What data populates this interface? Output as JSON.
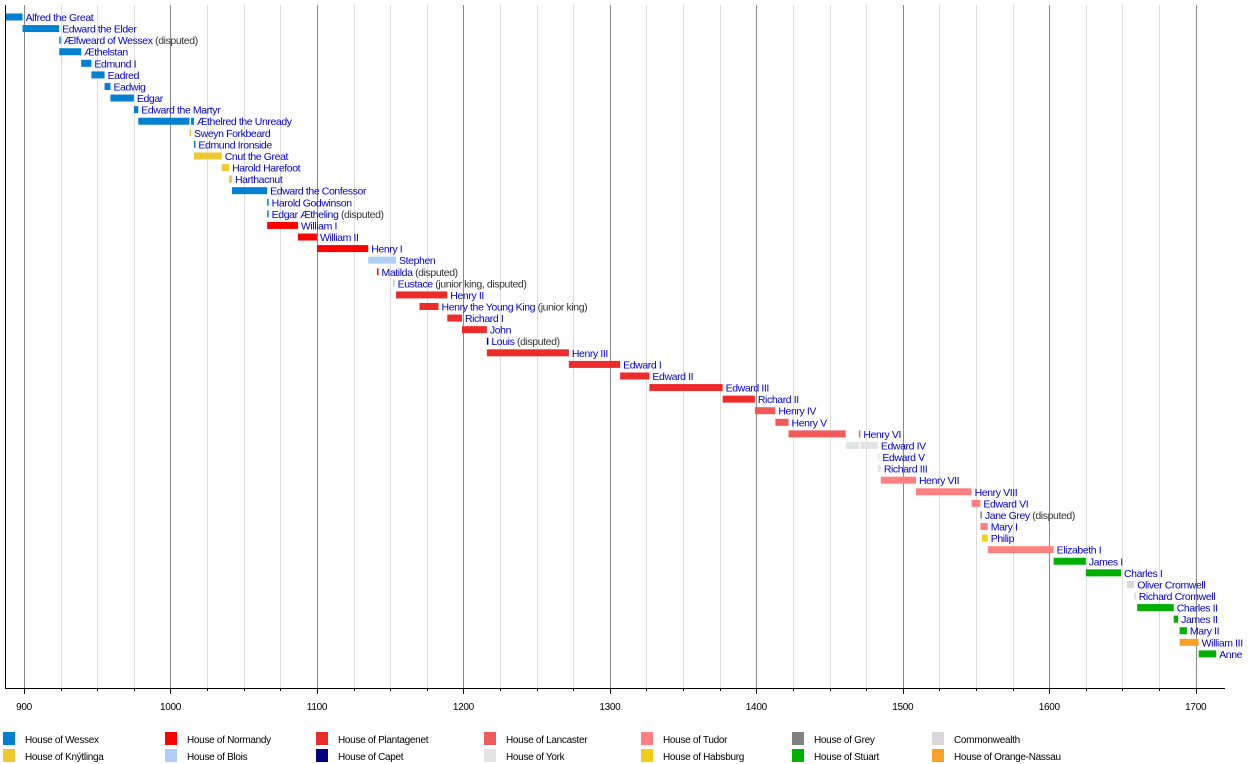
{
  "chart_data": {
    "type": "timeline",
    "title": "",
    "xlabel": "",
    "ylabel": "",
    "xlim": [
      887,
      1720
    ],
    "x_ticks": [
      900,
      1000,
      1100,
      1200,
      1300,
      1400,
      1500,
      1600,
      1700
    ],
    "minor_grid_step": 25,
    "grid": true,
    "legend_position": "bottom",
    "houses": [
      {
        "name": "House of Wessex",
        "color": "#0080d0"
      },
      {
        "name": "House of Knýtlinga",
        "color": "#f0c830"
      },
      {
        "name": "House of Normandy",
        "color": "#ff0000"
      },
      {
        "name": "House of Blois",
        "color": "#b0cdf8"
      },
      {
        "name": "House of Plantagenet",
        "color": "#ec2b2b"
      },
      {
        "name": "House of Capet",
        "color": "#000080"
      },
      {
        "name": "House of Lancaster",
        "color": "#f05a5a"
      },
      {
        "name": "House of York",
        "color": "#e4e4e4"
      },
      {
        "name": "House of Tudor",
        "color": "#ff8080"
      },
      {
        "name": "House of Habsburg",
        "color": "#f5cc14"
      },
      {
        "name": "House of Grey",
        "color": "#808080"
      },
      {
        "name": "House of Stuart",
        "color": "#00b000"
      },
      {
        "name": "Commonwealth",
        "color": "#d8d8d8"
      },
      {
        "name": "House of Orange-Nassau",
        "color": "#f8a028"
      }
    ],
    "legend_order": [
      "House of Wessex",
      "House of Normandy",
      "House of Plantagenet",
      "House of Lancaster",
      "House of Tudor",
      "House of Grey",
      "Commonwealth",
      "House of Knýtlinga",
      "House of Blois",
      "House of Capet",
      "House of York",
      "House of Habsburg",
      "House of Stuart",
      "House of Orange-Nassau"
    ],
    "monarchs": [
      {
        "name": "Alfred the Great",
        "house": "House of Wessex",
        "reigns": [
          [
            871,
            899
          ]
        ],
        "note": ""
      },
      {
        "name": "Edward the Elder",
        "house": "House of Wessex",
        "reigns": [
          [
            899,
            924
          ]
        ],
        "note": ""
      },
      {
        "name": "Ælfweard of Wessex",
        "house": "House of Wessex",
        "reigns": [
          [
            924,
            924
          ]
        ],
        "note": "(disputed)"
      },
      {
        "name": "Æthelstan",
        "house": "House of Wessex",
        "reigns": [
          [
            924,
            939
          ]
        ],
        "note": ""
      },
      {
        "name": "Edmund I",
        "house": "House of Wessex",
        "reigns": [
          [
            939,
            946
          ]
        ],
        "note": ""
      },
      {
        "name": "Eadred",
        "house": "House of Wessex",
        "reigns": [
          [
            946,
            955
          ]
        ],
        "note": ""
      },
      {
        "name": "Eadwig",
        "house": "House of Wessex",
        "reigns": [
          [
            955,
            959
          ]
        ],
        "note": ""
      },
      {
        "name": "Edgar",
        "house": "House of Wessex",
        "reigns": [
          [
            959,
            975
          ]
        ],
        "note": ""
      },
      {
        "name": "Edward the Martyr",
        "house": "House of Wessex",
        "reigns": [
          [
            975,
            978
          ]
        ],
        "note": ""
      },
      {
        "name": "Æthelred the Unready",
        "house": "House of Wessex",
        "reigns": [
          [
            978,
            1013
          ],
          [
            1014,
            1016
          ]
        ],
        "note": ""
      },
      {
        "name": "Sweyn Forkbeard",
        "house": "House of Knýtlinga",
        "reigns": [
          [
            1013,
            1014
          ]
        ],
        "note": ""
      },
      {
        "name": "Edmund Ironside",
        "house": "House of Wessex",
        "reigns": [
          [
            1016,
            1016
          ]
        ],
        "note": ""
      },
      {
        "name": "Cnut the Great",
        "house": "House of Knýtlinga",
        "reigns": [
          [
            1016,
            1035
          ]
        ],
        "note": ""
      },
      {
        "name": "Harold Harefoot",
        "house": "House of Knýtlinga",
        "reigns": [
          [
            1035,
            1040
          ]
        ],
        "note": ""
      },
      {
        "name": "Harthacnut",
        "house": "House of Knýtlinga",
        "reigns": [
          [
            1040,
            1042
          ]
        ],
        "note": ""
      },
      {
        "name": "Edward the Confessor",
        "house": "House of Wessex",
        "reigns": [
          [
            1042,
            1066
          ]
        ],
        "note": ""
      },
      {
        "name": "Harold Godwinson",
        "house": "House of Wessex",
        "reigns": [
          [
            1066,
            1066
          ]
        ],
        "note": ""
      },
      {
        "name": "Edgar Ætheling",
        "house": "House of Wessex",
        "reigns": [
          [
            1066,
            1066
          ]
        ],
        "note": "(disputed)"
      },
      {
        "name": "William I",
        "house": "House of Normandy",
        "reigns": [
          [
            1066,
            1087
          ]
        ],
        "note": ""
      },
      {
        "name": "William II",
        "house": "House of Normandy",
        "reigns": [
          [
            1087,
            1100
          ]
        ],
        "note": ""
      },
      {
        "name": "Henry I",
        "house": "House of Normandy",
        "reigns": [
          [
            1100,
            1135
          ]
        ],
        "note": ""
      },
      {
        "name": "Stephen",
        "house": "House of Blois",
        "reigns": [
          [
            1135,
            1154
          ]
        ],
        "note": ""
      },
      {
        "name": "Matilda",
        "house": "House of Normandy",
        "reigns": [
          [
            1141,
            1141
          ]
        ],
        "note": "(disputed)"
      },
      {
        "name": "Eustace",
        "house": "House of Blois",
        "reigns": [
          [
            1152,
            1153
          ]
        ],
        "note": "(junior king, disputed)"
      },
      {
        "name": "Henry II",
        "house": "House of Plantagenet",
        "reigns": [
          [
            1154,
            1189
          ]
        ],
        "note": ""
      },
      {
        "name": "Henry the Young King",
        "house": "House of Plantagenet",
        "reigns": [
          [
            1170,
            1183
          ]
        ],
        "note": "(junior king)"
      },
      {
        "name": "Richard I",
        "house": "House of Plantagenet",
        "reigns": [
          [
            1189,
            1199
          ]
        ],
        "note": ""
      },
      {
        "name": "John",
        "house": "House of Plantagenet",
        "reigns": [
          [
            1199,
            1216
          ]
        ],
        "note": ""
      },
      {
        "name": "Louis",
        "house": "House of Capet",
        "reigns": [
          [
            1216,
            1217
          ]
        ],
        "note": "(disputed)"
      },
      {
        "name": "Henry III",
        "house": "House of Plantagenet",
        "reigns": [
          [
            1216,
            1272
          ]
        ],
        "note": ""
      },
      {
        "name": "Edward I",
        "house": "House of Plantagenet",
        "reigns": [
          [
            1272,
            1307
          ]
        ],
        "note": ""
      },
      {
        "name": "Edward II",
        "house": "House of Plantagenet",
        "reigns": [
          [
            1307,
            1327
          ]
        ],
        "note": ""
      },
      {
        "name": "Edward III",
        "house": "House of Plantagenet",
        "reigns": [
          [
            1327,
            1377
          ]
        ],
        "note": ""
      },
      {
        "name": "Richard II",
        "house": "House of Plantagenet",
        "reigns": [
          [
            1377,
            1399
          ]
        ],
        "note": ""
      },
      {
        "name": "Henry IV",
        "house": "House of Lancaster",
        "reigns": [
          [
            1399,
            1413
          ]
        ],
        "note": ""
      },
      {
        "name": "Henry V",
        "house": "House of Lancaster",
        "reigns": [
          [
            1413,
            1422
          ]
        ],
        "note": ""
      },
      {
        "name": "Henry VI",
        "house": "House of Lancaster",
        "reigns": [
          [
            1422,
            1461
          ],
          [
            1470,
            1471
          ]
        ],
        "note": ""
      },
      {
        "name": "Edward IV",
        "house": "House of York",
        "reigns": [
          [
            1461,
            1470
          ],
          [
            1471,
            1483
          ]
        ],
        "note": ""
      },
      {
        "name": "Edward V",
        "house": "House of York",
        "reigns": [
          [
            1483,
            1483
          ]
        ],
        "note": ""
      },
      {
        "name": "Richard III",
        "house": "House of York",
        "reigns": [
          [
            1483,
            1485
          ]
        ],
        "note": ""
      },
      {
        "name": "Henry VII",
        "house": "House of Tudor",
        "reigns": [
          [
            1485,
            1509
          ]
        ],
        "note": ""
      },
      {
        "name": "Henry VIII",
        "house": "House of Tudor",
        "reigns": [
          [
            1509,
            1547
          ]
        ],
        "note": ""
      },
      {
        "name": "Edward VI",
        "house": "House of Tudor",
        "reigns": [
          [
            1547,
            1553
          ]
        ],
        "note": ""
      },
      {
        "name": "Jane Grey",
        "house": "House of Grey",
        "reigns": [
          [
            1553,
            1553
          ]
        ],
        "note": "(disputed)"
      },
      {
        "name": "Mary I",
        "house": "House of Tudor",
        "reigns": [
          [
            1553,
            1558
          ]
        ],
        "note": ""
      },
      {
        "name": "Philip",
        "house": "House of Habsburg",
        "reigns": [
          [
            1554,
            1558
          ]
        ],
        "note": ""
      },
      {
        "name": "Elizabeth I",
        "house": "House of Tudor",
        "reigns": [
          [
            1558,
            1603
          ]
        ],
        "note": ""
      },
      {
        "name": "James I",
        "house": "House of Stuart",
        "reigns": [
          [
            1603,
            1625
          ]
        ],
        "note": ""
      },
      {
        "name": "Charles I",
        "house": "House of Stuart",
        "reigns": [
          [
            1625,
            1649
          ]
        ],
        "note": ""
      },
      {
        "name": "Oliver Cromwell",
        "house": "Commonwealth",
        "reigns": [
          [
            1653,
            1658
          ]
        ],
        "note": ""
      },
      {
        "name": "Richard Cromwell",
        "house": "Commonwealth",
        "reigns": [
          [
            1658,
            1659
          ]
        ],
        "note": ""
      },
      {
        "name": "Charles II",
        "house": "House of Stuart",
        "reigns": [
          [
            1660,
            1685
          ]
        ],
        "note": ""
      },
      {
        "name": "James II",
        "house": "House of Stuart",
        "reigns": [
          [
            1685,
            1688
          ]
        ],
        "note": ""
      },
      {
        "name": "Mary II",
        "house": "House of Stuart",
        "reigns": [
          [
            1689,
            1694
          ]
        ],
        "note": ""
      },
      {
        "name": "William III",
        "house": "House of Orange-Nassau",
        "reigns": [
          [
            1689,
            1702
          ]
        ],
        "note": ""
      },
      {
        "name": "Anne",
        "house": "House of Stuart",
        "reigns": [
          [
            1702,
            1714
          ]
        ],
        "note": ""
      }
    ],
    "label_color": "#0000cc",
    "note_color": "#333333"
  }
}
